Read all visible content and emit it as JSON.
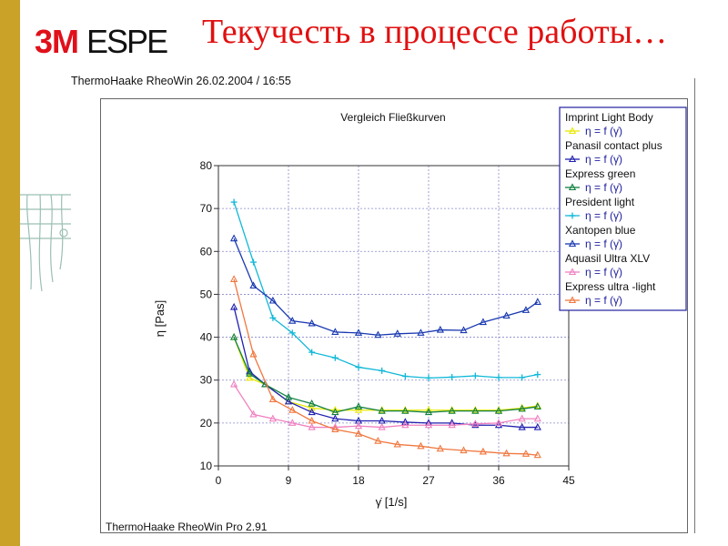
{
  "slide": {
    "logo_brand": "3M",
    "logo_product": "ESPE",
    "title": "Текучесть в процессе работы…",
    "app_header": "ThermoHaake RheoWin    26.02.2004 / 16:55",
    "app_footer": "ThermoHaake RheoWin Pro 2.91",
    "left_bar_color": "#c9a227",
    "title_color": "#e01010"
  },
  "chart_data": {
    "type": "line",
    "title": "Vergleich Fließkurven",
    "xlabel": "γ̇  [1/s]",
    "ylabel": "η  [Pas]",
    "xlim": [
      0,
      45
    ],
    "ylim": [
      10,
      80
    ],
    "xticks": [
      0,
      9,
      18,
      27,
      36,
      45
    ],
    "yticks": [
      10,
      20,
      30,
      40,
      50,
      60,
      70,
      80
    ],
    "grid": true,
    "legend_position": "top-right",
    "series": [
      {
        "name": "Imprint Light Body",
        "formula": "η = f (γ̇)",
        "color": "#e8e800",
        "marker": "triangle",
        "x": [
          2,
          4,
          6,
          9,
          12,
          15,
          18,
          21,
          24,
          27,
          30,
          33,
          36,
          39,
          41
        ],
        "y": [
          40,
          30.5,
          29,
          25,
          23.5,
          23,
          23,
          23,
          23,
          23,
          23,
          23,
          23,
          23.5,
          24
        ]
      },
      {
        "name": "Panasil contact plus",
        "formula": "η = f (γ̇)",
        "color": "#2020b0",
        "marker": "triangle",
        "x": [
          2,
          4,
          6,
          9,
          12,
          15,
          18,
          21,
          24,
          27,
          30,
          33,
          36,
          39,
          41
        ],
        "y": [
          47,
          32,
          29,
          25,
          22.5,
          21,
          20.5,
          20.5,
          20.2,
          20,
          20,
          19.5,
          19.5,
          19,
          19
        ]
      },
      {
        "name": "Express green",
        "formula": "η = f (γ̇)",
        "color": "#108040",
        "marker": "triangle",
        "x": [
          2,
          4,
          6,
          9,
          12,
          15,
          18,
          21,
          24,
          27,
          30,
          33,
          36,
          39,
          41
        ],
        "y": [
          40,
          31.5,
          29,
          26,
          24.5,
          22.5,
          23.8,
          22.8,
          22.8,
          22.5,
          22.8,
          22.8,
          22.8,
          23.3,
          23.8
        ]
      },
      {
        "name": "President light",
        "formula": "η = f (γ̇)",
        "color": "#10b8d8",
        "marker": "plus",
        "x": [
          2,
          4.5,
          7,
          9.5,
          12,
          15,
          18,
          21,
          24,
          27,
          30,
          33,
          36,
          39,
          41
        ],
        "y": [
          71.5,
          57.5,
          44.5,
          41,
          36.5,
          35.2,
          33,
          32.2,
          30.9,
          30.5,
          30.7,
          31,
          30.6,
          30.6,
          31.3
        ]
      },
      {
        "name": "Xantopen blue",
        "formula": "η = f (γ̇)",
        "color": "#1838b0",
        "marker": "triangle",
        "x": [
          2,
          4.5,
          7,
          9.5,
          12,
          15,
          18,
          20.5,
          23,
          26,
          28.5,
          31.5,
          34,
          37,
          39.5,
          41
        ],
        "y": [
          63,
          52,
          48.5,
          43.8,
          43.2,
          41.2,
          41,
          40.5,
          40.8,
          41,
          41.7,
          41.6,
          43.5,
          45,
          46.3,
          48.2
        ]
      },
      {
        "name": "Aquasil Ultra XLV",
        "formula": "η = f (γ̇)",
        "color": "#f080c0",
        "marker": "triangle",
        "x": [
          2,
          4.5,
          7,
          9.5,
          12,
          15,
          18,
          21,
          24,
          27,
          30,
          33,
          36,
          39,
          41
        ],
        "y": [
          29,
          22,
          21,
          20,
          19,
          19,
          19.3,
          19,
          19.5,
          19.5,
          19.5,
          19.8,
          20,
          21,
          21
        ]
      },
      {
        "name": "Express ultra -light",
        "formula": "η = f (γ̇)",
        "color": "#f07840",
        "marker": "triangle",
        "x": [
          2,
          4.5,
          7,
          9.5,
          12,
          15,
          18,
          20.5,
          23,
          26,
          28.5,
          31.5,
          34,
          37,
          39.5,
          41
        ],
        "y": [
          53.5,
          36,
          25.5,
          23,
          20.5,
          18.5,
          17.5,
          15.8,
          15,
          14.6,
          14,
          13.6,
          13.3,
          12.9,
          12.8,
          12.5
        ]
      }
    ]
  }
}
